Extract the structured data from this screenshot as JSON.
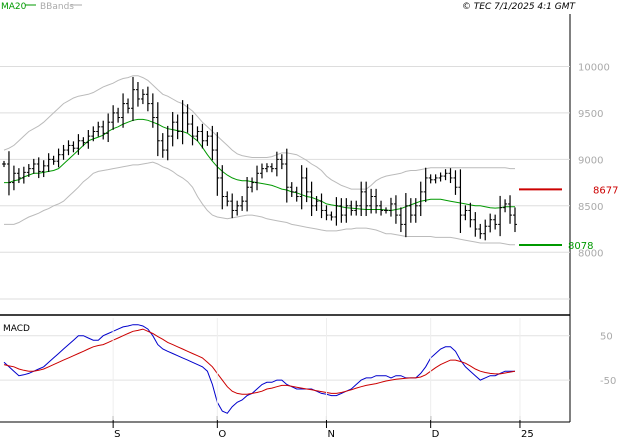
{
  "header": {
    "legend": [
      {
        "label": "MA20",
        "color": "#009900"
      },
      {
        "label": "BBands",
        "color": "#aaaaaa"
      }
    ],
    "timestamp": "© TEC 7/1/2025 4:1 GMT"
  },
  "chart_data": [
    {
      "type": "ohlc",
      "panel": "price",
      "ylim": [
        7400,
        10500
      ],
      "y_ticks": [
        {
          "value": 10000,
          "label": "10000"
        },
        {
          "value": 9500,
          "label": "9500"
        },
        {
          "value": 9000,
          "label": "9000"
        },
        {
          "value": 8500,
          "label": "8500"
        },
        {
          "value": 8000,
          "label": "8000"
        }
      ],
      "closes": [
        8950,
        8750,
        8850,
        8800,
        8860,
        8900,
        8950,
        8870,
        8930,
        9000,
        8980,
        9050,
        9100,
        9150,
        9120,
        9200,
        9180,
        9250,
        9300,
        9350,
        9280,
        9400,
        9500,
        9450,
        9600,
        9550,
        9750,
        9650,
        9700,
        9600,
        9450,
        9200,
        9100,
        9250,
        9400,
        9300,
        9500,
        9380,
        9250,
        9300,
        9200,
        9250,
        9100,
        8800,
        8600,
        8550,
        8450,
        8500,
        8550,
        8700,
        8750,
        8850,
        8900,
        8920,
        8900,
        9000,
        8950,
        8700,
        8650,
        8600,
        8800,
        8650,
        8500,
        8550,
        8450,
        8400,
        8380,
        8500,
        8400,
        8500,
        8450,
        8500,
        8650,
        8500,
        8600,
        8500,
        8450,
        8450,
        8520,
        8400,
        8300,
        8500,
        8400,
        8500,
        8650,
        8800,
        8780,
        8800,
        8820,
        8850,
        8800,
        8700,
        8400,
        8450,
        8350,
        8250,
        8200,
        8280,
        8350,
        8300,
        8480,
        8520,
        8400,
        8300
      ],
      "ma20": [
        8750,
        8750,
        8770,
        8780,
        8810,
        8830,
        8850,
        8850,
        8860,
        8870,
        8880,
        8900,
        8950,
        9000,
        9050,
        9100,
        9150,
        9200,
        9220,
        9240,
        9260,
        9300,
        9330,
        9350,
        9380,
        9400,
        9420,
        9430,
        9430,
        9420,
        9400,
        9380,
        9350,
        9330,
        9320,
        9310,
        9300,
        9280,
        9240,
        9200,
        9130,
        9050,
        8980,
        8920,
        8870,
        8830,
        8800,
        8780,
        8770,
        8770,
        8760,
        8750,
        8740,
        8730,
        8720,
        8700,
        8680,
        8670,
        8650,
        8640,
        8620,
        8600,
        8590,
        8570,
        8550,
        8520,
        8510,
        8500,
        8490,
        8480,
        8475,
        8470,
        8465,
        8460,
        8460,
        8460,
        8460,
        8455,
        8450,
        8460,
        8470,
        8490,
        8510,
        8530,
        8550,
        8560,
        8570,
        8570,
        8570,
        8560,
        8550,
        8540,
        8530,
        8520,
        8510,
        8500,
        8500,
        8490,
        8480,
        8475,
        8480,
        8490,
        8490,
        8490
      ],
      "bb_upper": [
        9100,
        9120,
        9150,
        9200,
        9250,
        9300,
        9330,
        9360,
        9400,
        9450,
        9500,
        9550,
        9600,
        9630,
        9660,
        9680,
        9690,
        9700,
        9720,
        9750,
        9780,
        9800,
        9820,
        9850,
        9870,
        9880,
        9900,
        9900,
        9880,
        9850,
        9800,
        9750,
        9700,
        9680,
        9650,
        9620,
        9600,
        9560,
        9520,
        9460,
        9400,
        9350,
        9300,
        9250,
        9200,
        9150,
        9100,
        9060,
        9040,
        9030,
        9020,
        9020,
        9020,
        9020,
        9030,
        9050,
        9070,
        9070,
        9060,
        9050,
        9020,
        8990,
        8950,
        8920,
        8880,
        8820,
        8780,
        8750,
        8720,
        8700,
        8680,
        8680,
        8680,
        8680,
        8720,
        8770,
        8800,
        8820,
        8830,
        8840,
        8850,
        8870,
        8880,
        8880,
        8890,
        8900,
        8910,
        8910,
        8910,
        8910,
        8910,
        8910,
        8910,
        8910,
        8910,
        8910,
        8910,
        8910,
        8910,
        8910,
        8910,
        8910,
        8900,
        8900
      ],
      "bb_lower": [
        8300,
        8300,
        8300,
        8320,
        8350,
        8380,
        8400,
        8420,
        8450,
        8470,
        8500,
        8520,
        8550,
        8600,
        8650,
        8700,
        8760,
        8800,
        8850,
        8870,
        8880,
        8890,
        8900,
        8910,
        8920,
        8930,
        8940,
        8940,
        8950,
        8960,
        8970,
        8950,
        8920,
        8900,
        8870,
        8830,
        8800,
        8760,
        8700,
        8600,
        8520,
        8450,
        8400,
        8380,
        8370,
        8360,
        8370,
        8380,
        8390,
        8400,
        8400,
        8390,
        8380,
        8360,
        8350,
        8340,
        8330,
        8320,
        8300,
        8290,
        8280,
        8270,
        8260,
        8250,
        8240,
        8230,
        8230,
        8230,
        8240,
        8250,
        8250,
        8260,
        8260,
        8260,
        8250,
        8240,
        8220,
        8200,
        8200,
        8190,
        8180,
        8170,
        8170,
        8170,
        8170,
        8170,
        8170,
        8160,
        8160,
        8160,
        8160,
        8150,
        8140,
        8130,
        8120,
        8110,
        8100,
        8100,
        8100,
        8100,
        8100,
        8090,
        8080,
        8080
      ],
      "annotations": [
        {
          "label": "8677",
          "value": 8677,
          "color": "#cc0000"
        },
        {
          "label": "8078",
          "value": 8078,
          "color": "#009900"
        }
      ]
    },
    {
      "type": "line",
      "panel": "macd",
      "title": "MACD",
      "ylim": [
        -140,
        90
      ],
      "y_ticks": [
        {
          "value": 50,
          "label": "50"
        },
        {
          "value": -50,
          "label": "-50"
        }
      ],
      "series": [
        {
          "color": "#0000cc",
          "values": [
            -10,
            -20,
            -30,
            -40,
            -38,
            -35,
            -30,
            -25,
            -20,
            -10,
            0,
            10,
            20,
            30,
            40,
            50,
            50,
            45,
            40,
            40,
            50,
            55,
            60,
            65,
            70,
            72,
            75,
            75,
            72,
            65,
            50,
            30,
            20,
            15,
            10,
            5,
            0,
            -5,
            -10,
            -15,
            -20,
            -30,
            -60,
            -100,
            -120,
            -125,
            -110,
            -100,
            -95,
            -85,
            -80,
            -70,
            -60,
            -55,
            -55,
            -50,
            -50,
            -60,
            -65,
            -70,
            -70,
            -70,
            -70,
            -75,
            -80,
            -82,
            -85,
            -85,
            -80,
            -75,
            -70,
            -60,
            -50,
            -45,
            -45,
            -40,
            -40,
            -40,
            -45,
            -40,
            -40,
            -45,
            -45,
            -45,
            -35,
            -20,
            0,
            10,
            20,
            25,
            25,
            15,
            -5,
            -20,
            -30,
            -40,
            -50,
            -45,
            -40,
            -40,
            -35,
            -30,
            -30,
            -30
          ]
        },
        {
          "color": "#cc0000",
          "values": [
            -15,
            -18,
            -20,
            -25,
            -28,
            -30,
            -30,
            -28,
            -25,
            -20,
            -15,
            -10,
            -5,
            0,
            5,
            10,
            15,
            20,
            25,
            28,
            30,
            35,
            40,
            45,
            50,
            55,
            60,
            62,
            65,
            60,
            55,
            48,
            42,
            35,
            30,
            25,
            20,
            15,
            10,
            5,
            0,
            -10,
            -20,
            -35,
            -50,
            -65,
            -75,
            -80,
            -82,
            -82,
            -80,
            -78,
            -75,
            -70,
            -68,
            -65,
            -62,
            -62,
            -64,
            -66,
            -68,
            -70,
            -72,
            -74,
            -76,
            -78,
            -80,
            -80,
            -78,
            -75,
            -72,
            -68,
            -65,
            -62,
            -60,
            -58,
            -55,
            -52,
            -50,
            -48,
            -47,
            -46,
            -45,
            -45,
            -43,
            -38,
            -30,
            -22,
            -15,
            -10,
            -5,
            -5,
            -8,
            -12,
            -18,
            -25,
            -30,
            -33,
            -35,
            -36,
            -36,
            -34,
            -32,
            -30
          ]
        }
      ]
    }
  ],
  "x_axis": {
    "labels": [
      {
        "label": "S",
        "index": 22
      },
      {
        "label": "O",
        "index": 43
      },
      {
        "label": "N",
        "index": 65
      },
      {
        "label": "D",
        "index": 86
      },
      {
        "label": "25",
        "index": 104
      }
    ]
  }
}
